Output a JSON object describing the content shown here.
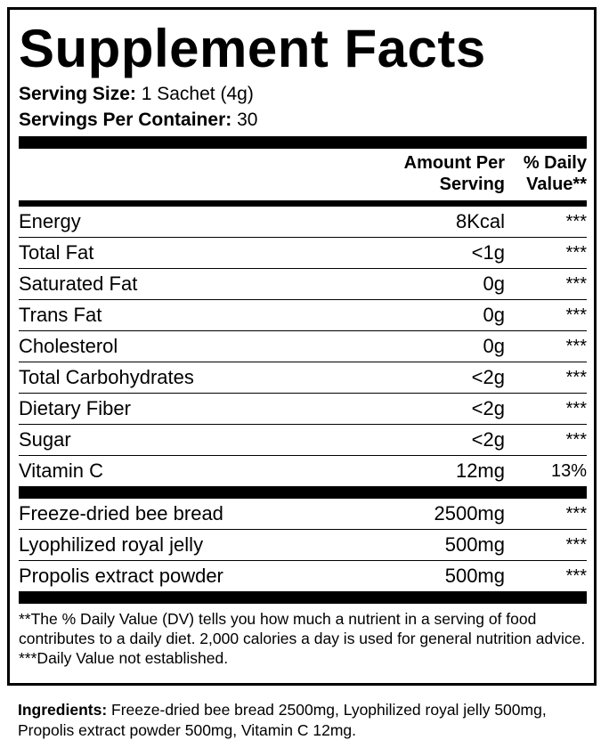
{
  "title": "Supplement Facts",
  "serving": [
    {
      "label": "Serving Size:",
      "value": "1 Sachet (4g)"
    },
    {
      "label": "Servings Per Container:",
      "value": "30"
    }
  ],
  "header": {
    "amount": [
      "Amount Per",
      "Serving"
    ],
    "daily_value": [
      "% Daily",
      "Value**"
    ]
  },
  "nutrients": [
    [
      "Energy",
      "8Kcal",
      "***"
    ],
    [
      "Total Fat",
      "<1g",
      "***"
    ],
    [
      "Saturated Fat",
      "0g",
      "***"
    ],
    [
      "Trans Fat",
      "0g",
      "***"
    ],
    [
      "Cholesterol",
      "0g",
      "***"
    ],
    [
      "Total Carbohydrates",
      "<2g",
      "***"
    ],
    [
      "Dietary Fiber",
      "<2g",
      "***"
    ],
    [
      "Sugar",
      "<2g",
      "***"
    ],
    [
      "Vitamin C",
      "12mg",
      "13%"
    ]
  ],
  "actives": [
    [
      "Freeze-dried bee bread",
      "2500mg",
      "***"
    ],
    [
      "Lyophilized royal jelly",
      "500mg",
      "***"
    ],
    [
      "Propolis extract powder",
      "500mg",
      "***"
    ]
  ],
  "footnotes": [
    "**The % Daily Value (DV) tells you how much a nutrient in a serving of food contributes to a daily diet. 2,000 calories a day is used for general nutrition advice.",
    "***Daily Value not established."
  ],
  "ingredients": {
    "label": "Ingredients:",
    "text": "Freeze-dried bee bread 2500mg, Lyophilized royal jelly 500mg, Propolis extract powder 500mg, Vitamin C 12mg."
  }
}
